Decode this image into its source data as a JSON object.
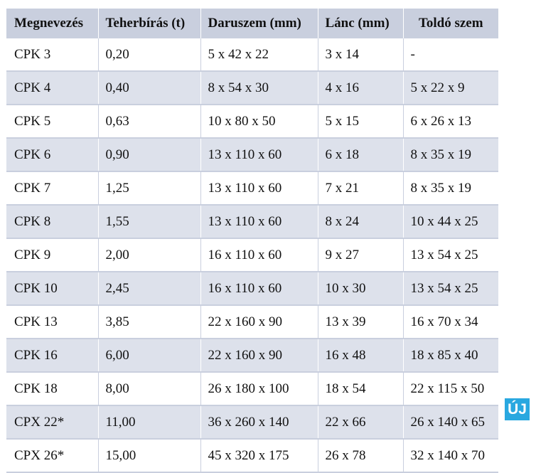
{
  "table": {
    "headers": [
      "Megnevezés",
      "Teherbírás (t)",
      "Daruszem (mm)",
      "Lánc (mm)",
      "Toldó szem"
    ],
    "rows": [
      [
        "CPK 3",
        "0,20",
        "5 x 42 x 22",
        "3 x 14",
        "-"
      ],
      [
        "CPK 4",
        "0,40",
        "8 x 54 x 30",
        "4 x 16",
        "5 x 22 x 9"
      ],
      [
        "CPK 5",
        "0,63",
        "10 x 80 x 50",
        "5 x 15",
        "6 x 26 x 13"
      ],
      [
        "CPK 6",
        "0,90",
        "13 x 110 x 60",
        "6 x 18",
        "8 x 35 x 19"
      ],
      [
        "CPK 7",
        "1,25",
        "13 x 110 x 60",
        "7 x 21",
        "8 x 35 x 19"
      ],
      [
        "CPK 8",
        "1,55",
        "13 x 110 x 60",
        "8 x 24",
        "10 x 44 x 25"
      ],
      [
        "CPK 9",
        "2,00",
        "16 x 110 x 60",
        "9 x 27",
        "13 x 54 x 25"
      ],
      [
        "CPK 10",
        "2,45",
        "16 x 110 x 60",
        "10 x 30",
        "13 x 54 x 25"
      ],
      [
        "CPK 13",
        "3,85",
        "22 x 160 x 90",
        "13 x 39",
        "16 x 70 x 34"
      ],
      [
        "CPK 16",
        "6,00",
        "22 x 160 x 90",
        "16 x 48",
        "18 x 85 x 40"
      ],
      [
        "CPK 18",
        "8,00",
        "26 x 180 x 100",
        "18 x 54",
        "22 x 115 x 50"
      ],
      [
        "CPX 22*",
        "11,00",
        "36 x 260 x 140",
        "22 x 66",
        "26 x 140 x 65"
      ],
      [
        "CPX 26*",
        "15,00",
        "45 x 320 x 175",
        "26 x 78",
        "32 x 140 x 70"
      ]
    ]
  },
  "badge": {
    "label": "ÚJ"
  },
  "colors": {
    "header_bg": "#c9cfde",
    "stripe_bg": "#dde1eb",
    "badge_bg": "#29a8e0"
  }
}
